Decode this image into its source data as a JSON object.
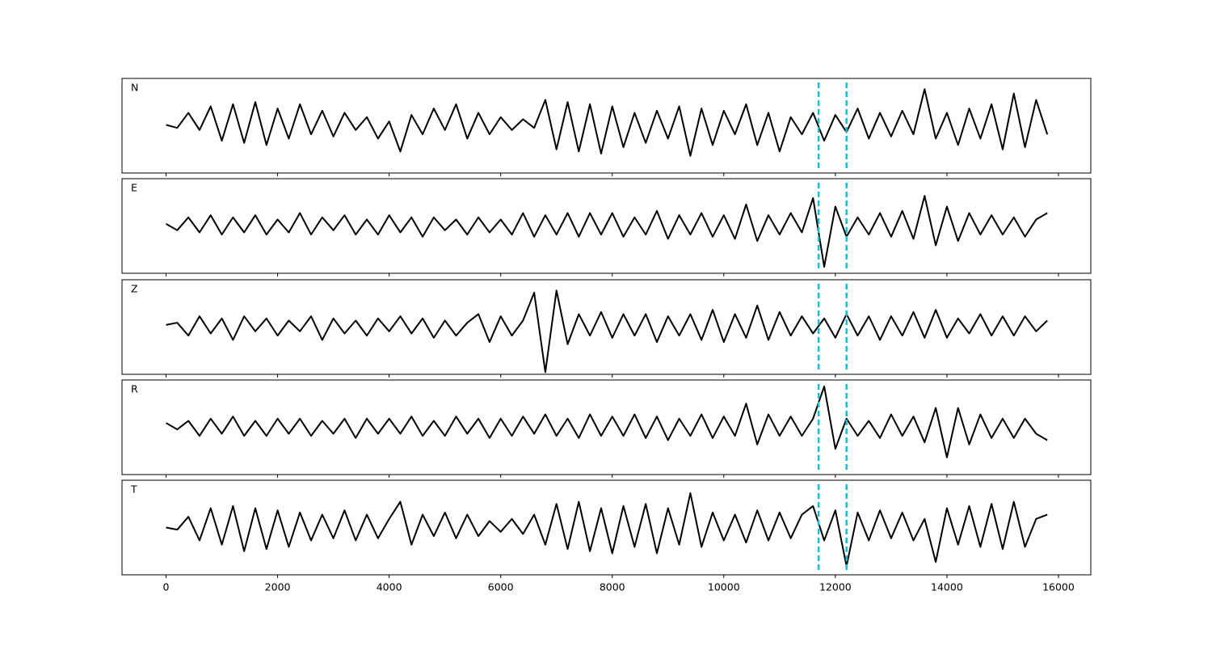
{
  "chart_data": {
    "type": "line",
    "x": [
      0,
      200,
      400,
      600,
      800,
      1000,
      1200,
      1400,
      1600,
      1800,
      2000,
      2200,
      2400,
      2600,
      2800,
      3000,
      3200,
      3400,
      3600,
      3800,
      4000,
      4200,
      4400,
      4600,
      4800,
      5000,
      5200,
      5400,
      5600,
      5800,
      6000,
      6200,
      6400,
      6600,
      6800,
      7000,
      7200,
      7400,
      7600,
      7800,
      8000,
      8200,
      8400,
      8600,
      8800,
      9000,
      9200,
      9400,
      9600,
      9800,
      10000,
      10200,
      10400,
      10600,
      10800,
      11000,
      11200,
      11400,
      11600,
      11800,
      12000,
      12200,
      12400,
      12600,
      12800,
      13000,
      13200,
      13400,
      13600,
      13800,
      14000,
      14200,
      14400,
      14600,
      14800,
      15000,
      15200,
      15400,
      15600,
      15800
    ],
    "xlim": [
      -790,
      16580
    ],
    "xticks": [
      0,
      2000,
      4000,
      6000,
      8000,
      10000,
      12000,
      14000,
      16000
    ],
    "ylim": [
      -1.1,
      1.1
    ],
    "series": [
      {
        "name": "N",
        "color": "#000000",
        "values": [
          0.02,
          -0.05,
          0.3,
          -0.1,
          0.45,
          -0.35,
          0.5,
          -0.4,
          0.55,
          -0.45,
          0.4,
          -0.3,
          0.5,
          -0.2,
          0.35,
          -0.25,
          0.3,
          -0.1,
          0.2,
          -0.3,
          0.1,
          -0.6,
          0.25,
          -0.2,
          0.4,
          -0.1,
          0.5,
          -0.3,
          0.3,
          -0.2,
          0.2,
          -0.1,
          0.15,
          -0.05,
          0.6,
          -0.55,
          0.55,
          -0.6,
          0.5,
          -0.65,
          0.45,
          -0.5,
          0.3,
          -0.4,
          0.35,
          -0.3,
          0.45,
          -0.7,
          0.4,
          -0.45,
          0.35,
          -0.2,
          0.5,
          -0.45,
          0.3,
          -0.6,
          0.2,
          -0.2,
          0.3,
          -0.35,
          0.25,
          -0.15,
          0.4,
          -0.3,
          0.3,
          -0.25,
          0.35,
          -0.2,
          0.85,
          -0.3,
          0.3,
          -0.45,
          0.4,
          -0.3,
          0.5,
          -0.55,
          0.75,
          -0.5,
          0.6,
          -0.2
        ]
      },
      {
        "name": "E",
        "color": "#000000",
        "values": [
          0.05,
          -0.1,
          0.2,
          -0.15,
          0.25,
          -0.2,
          0.2,
          -0.15,
          0.25,
          -0.2,
          0.15,
          -0.15,
          0.3,
          -0.2,
          0.2,
          -0.1,
          0.25,
          -0.2,
          0.15,
          -0.2,
          0.25,
          -0.15,
          0.2,
          -0.25,
          0.2,
          -0.1,
          0.15,
          -0.2,
          0.2,
          -0.15,
          0.15,
          -0.2,
          0.3,
          -0.25,
          0.25,
          -0.2,
          0.3,
          -0.25,
          0.3,
          -0.2,
          0.3,
          -0.25,
          0.2,
          -0.2,
          0.35,
          -0.3,
          0.25,
          -0.2,
          0.3,
          -0.25,
          0.25,
          -0.3,
          0.5,
          -0.35,
          0.25,
          -0.2,
          0.3,
          -0.15,
          0.65,
          -0.95,
          0.45,
          -0.25,
          0.2,
          -0.2,
          0.3,
          -0.25,
          0.35,
          -0.3,
          0.7,
          -0.45,
          0.45,
          -0.35,
          0.3,
          -0.2,
          0.25,
          -0.2,
          0.2,
          -0.25,
          0.15,
          0.3
        ]
      },
      {
        "name": "Z",
        "color": "#000000",
        "values": [
          0.05,
          0.1,
          -0.2,
          0.25,
          -0.15,
          0.2,
          -0.3,
          0.25,
          -0.1,
          0.2,
          -0.2,
          0.15,
          -0.1,
          0.25,
          -0.3,
          0.2,
          -0.15,
          0.15,
          -0.2,
          0.2,
          -0.1,
          0.25,
          -0.15,
          0.2,
          -0.25,
          0.15,
          -0.2,
          0.1,
          0.3,
          -0.35,
          0.25,
          -0.2,
          0.15,
          0.8,
          -1.05,
          0.85,
          -0.4,
          0.3,
          -0.2,
          0.35,
          -0.25,
          0.3,
          -0.2,
          0.3,
          -0.35,
          0.25,
          -0.2,
          0.3,
          -0.3,
          0.4,
          -0.35,
          0.3,
          -0.25,
          0.5,
          -0.3,
          0.35,
          -0.2,
          0.25,
          -0.15,
          0.2,
          -0.25,
          0.3,
          -0.2,
          0.25,
          -0.3,
          0.25,
          -0.2,
          0.35,
          -0.25,
          0.4,
          -0.25,
          0.2,
          -0.15,
          0.3,
          -0.2,
          0.25,
          -0.2,
          0.25,
          -0.1,
          0.15
        ]
      },
      {
        "name": "R",
        "color": "#000000",
        "values": [
          0.1,
          -0.05,
          0.15,
          -0.2,
          0.2,
          -0.15,
          0.25,
          -0.2,
          0.15,
          -0.2,
          0.2,
          -0.15,
          0.2,
          -0.2,
          0.15,
          -0.15,
          0.2,
          -0.25,
          0.2,
          -0.15,
          0.2,
          -0.15,
          0.25,
          -0.2,
          0.15,
          -0.2,
          0.25,
          -0.15,
          0.2,
          -0.25,
          0.2,
          -0.2,
          0.25,
          -0.15,
          0.3,
          -0.2,
          0.2,
          -0.25,
          0.3,
          -0.2,
          0.25,
          -0.2,
          0.3,
          -0.25,
          0.25,
          -0.3,
          0.2,
          -0.2,
          0.3,
          -0.25,
          0.25,
          -0.2,
          0.55,
          -0.4,
          0.3,
          -0.2,
          0.25,
          -0.2,
          0.2,
          0.95,
          -0.5,
          0.2,
          -0.2,
          0.15,
          -0.25,
          0.3,
          -0.2,
          0.25,
          -0.35,
          0.45,
          -0.7,
          0.45,
          -0.4,
          0.3,
          -0.25,
          0.2,
          -0.25,
          0.2,
          -0.15,
          -0.3
        ]
      },
      {
        "name": "T",
        "color": "#000000",
        "values": [
          0.0,
          -0.05,
          0.25,
          -0.3,
          0.45,
          -0.4,
          0.5,
          -0.55,
          0.45,
          -0.5,
          0.4,
          -0.45,
          0.35,
          -0.3,
          0.3,
          -0.25,
          0.4,
          -0.3,
          0.3,
          -0.25,
          0.2,
          0.6,
          -0.4,
          0.3,
          -0.2,
          0.35,
          -0.25,
          0.3,
          -0.2,
          0.15,
          -0.1,
          0.2,
          -0.15,
          0.3,
          -0.4,
          0.55,
          -0.5,
          0.6,
          -0.55,
          0.45,
          -0.6,
          0.5,
          -0.45,
          0.55,
          -0.6,
          0.45,
          -0.4,
          0.8,
          -0.45,
          0.35,
          -0.3,
          0.3,
          -0.35,
          0.4,
          -0.3,
          0.35,
          -0.25,
          0.3,
          0.5,
          -0.3,
          0.4,
          -0.9,
          0.35,
          -0.3,
          0.4,
          -0.25,
          0.35,
          -0.3,
          0.2,
          -0.8,
          0.45,
          -0.4,
          0.5,
          -0.45,
          0.55,
          -0.5,
          0.6,
          -0.45,
          0.2,
          0.3
        ]
      }
    ],
    "markers": {
      "values": [
        11700,
        12200
      ],
      "color": "#17becf"
    }
  }
}
